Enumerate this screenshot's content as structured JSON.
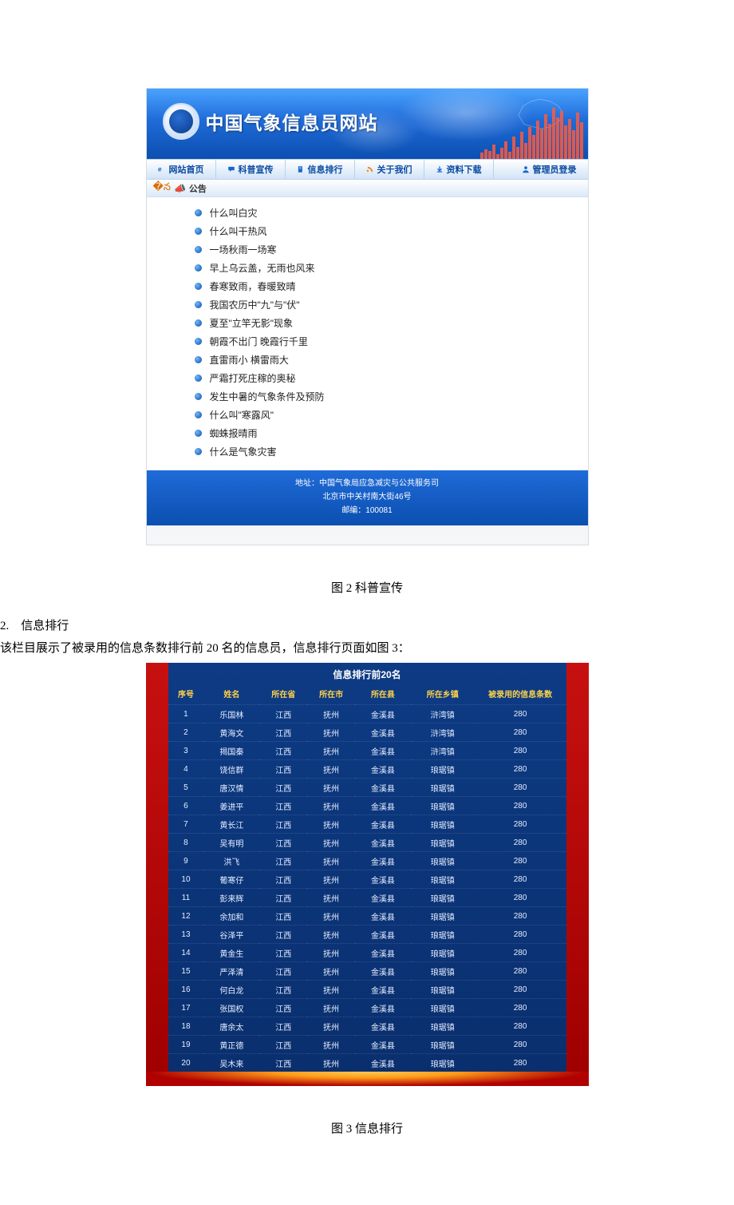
{
  "site": {
    "title": "中国气象信息员网站",
    "nav": [
      {
        "label": "网站首页",
        "icon": "e"
      },
      {
        "label": "科普宣传",
        "icon": "chat"
      },
      {
        "label": "信息排行",
        "icon": "doc"
      },
      {
        "label": "关于我们",
        "icon": "rss"
      },
      {
        "label": "资料下载",
        "icon": "down"
      },
      {
        "label": "管理员登录",
        "icon": "user"
      }
    ],
    "announcement_label": "公告",
    "articles": [
      "什么叫白灾",
      "什么叫干热风",
      "一场秋雨一场寒",
      "早上乌云盖，无雨也风来",
      "春寒致雨，春暖致晴",
      "我国农历中\"九\"与\"伏\"",
      "夏至\"立竿无影\"现象",
      "朝霞不出门 晚霞行千里",
      "直雷雨小 横雷雨大",
      "严霜打死庄稼的奥秘",
      "发生中暑的气象条件及预防",
      "什么叫\"寒露风\"",
      "蜘蛛报晴雨",
      "什么是气象灾害"
    ],
    "footer": [
      "地址：中国气象局应急减灾与公共服务司",
      "北京市中关村南大街46号",
      "邮编：100081"
    ],
    "banner_bar_heights": [
      8,
      12,
      10,
      18,
      6,
      14,
      22,
      9,
      28,
      15,
      34,
      20,
      40,
      30,
      48,
      38,
      56,
      44,
      64,
      52,
      60,
      42,
      50,
      36,
      58,
      46
    ]
  },
  "caption1": "图 2  科普宣传",
  "section2_num": "2.　信息排行",
  "section2_desc": "该栏目展示了被录用的信息条数排行前 20 名的信息员，信息排行页面如图 3：",
  "ranking": {
    "title": "信息排行前20名",
    "columns": [
      "序号",
      "姓名",
      "所在省",
      "所在市",
      "所在县",
      "所在乡镇",
      "被录用的信息条数"
    ],
    "col_widths": [
      "9%",
      "14%",
      "12%",
      "12%",
      "14%",
      "16%",
      "23%"
    ],
    "rows": [
      [
        "1",
        "乐国林",
        "江西",
        "抚州",
        "金溪县",
        "浒湾镇",
        "280"
      ],
      [
        "2",
        "黄海文",
        "江西",
        "抚州",
        "金溪县",
        "浒湾镇",
        "280"
      ],
      [
        "3",
        "揭国秦",
        "江西",
        "抚州",
        "金溪县",
        "浒湾镇",
        "280"
      ],
      [
        "4",
        "饶信群",
        "江西",
        "抚州",
        "金溪县",
        "琅琚镇",
        "280"
      ],
      [
        "5",
        "唐汉情",
        "江西",
        "抚州",
        "金溪县",
        "琅琚镇",
        "280"
      ],
      [
        "6",
        "姜进平",
        "江西",
        "抚州",
        "金溪县",
        "琅琚镇",
        "280"
      ],
      [
        "7",
        "黄长江",
        "江西",
        "抚州",
        "金溪县",
        "琅琚镇",
        "280"
      ],
      [
        "8",
        "吴有明",
        "江西",
        "抚州",
        "金溪县",
        "琅琚镇",
        "280"
      ],
      [
        "9",
        "洪飞",
        "江西",
        "抚州",
        "金溪县",
        "琅琚镇",
        "280"
      ],
      [
        "10",
        "葡寒仔",
        "江西",
        "抚州",
        "金溪县",
        "琅琚镇",
        "280"
      ],
      [
        "11",
        "彭来辉",
        "江西",
        "抚州",
        "金溪县",
        "琅琚镇",
        "280"
      ],
      [
        "12",
        "余加和",
        "江西",
        "抚州",
        "金溪县",
        "琅琚镇",
        "280"
      ],
      [
        "13",
        "谷泽平",
        "江西",
        "抚州",
        "金溪县",
        "琅琚镇",
        "280"
      ],
      [
        "14",
        "黄金生",
        "江西",
        "抚州",
        "金溪县",
        "琅琚镇",
        "280"
      ],
      [
        "15",
        "严泽清",
        "江西",
        "抚州",
        "金溪县",
        "琅琚镇",
        "280"
      ],
      [
        "16",
        "何白龙",
        "江西",
        "抚州",
        "金溪县",
        "琅琚镇",
        "280"
      ],
      [
        "17",
        "张国权",
        "江西",
        "抚州",
        "金溪县",
        "琅琚镇",
        "280"
      ],
      [
        "18",
        "唐余太",
        "江西",
        "抚州",
        "金溪县",
        "琅琚镇",
        "280"
      ],
      [
        "19",
        "黄正德",
        "江西",
        "抚州",
        "金溪县",
        "琅琚镇",
        "280"
      ],
      [
        "20",
        "吴木来",
        "江西",
        "抚州",
        "金溪县",
        "琅琚镇",
        "280"
      ]
    ]
  },
  "caption2": "图 3  信息排行"
}
